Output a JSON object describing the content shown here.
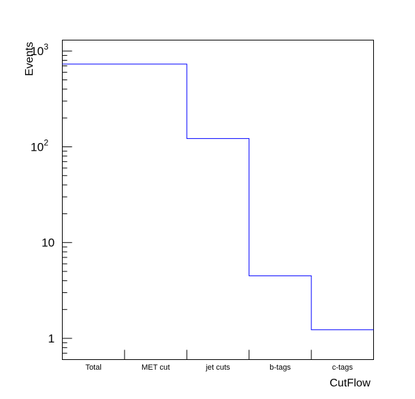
{
  "chart_data": {
    "type": "histogram-step",
    "xlabel": "CutFlow",
    "ylabel": "Events",
    "y_scale": "log",
    "ylim": [
      0.6,
      1300
    ],
    "categories": [
      "Total",
      "MET cut",
      "jet cuts",
      "b-tags",
      "c-tags"
    ],
    "values": [
      730,
      730,
      122,
      4.5,
      1.23
    ],
    "y_tick_labels": [
      {
        "value": 1,
        "label": "1"
      },
      {
        "value": 10,
        "label": "10"
      },
      {
        "value": 100,
        "label": "10",
        "exp": "2"
      },
      {
        "value": 1000,
        "label": "10",
        "exp": "3"
      }
    ],
    "line_color": "#0000ff",
    "grid": false
  }
}
